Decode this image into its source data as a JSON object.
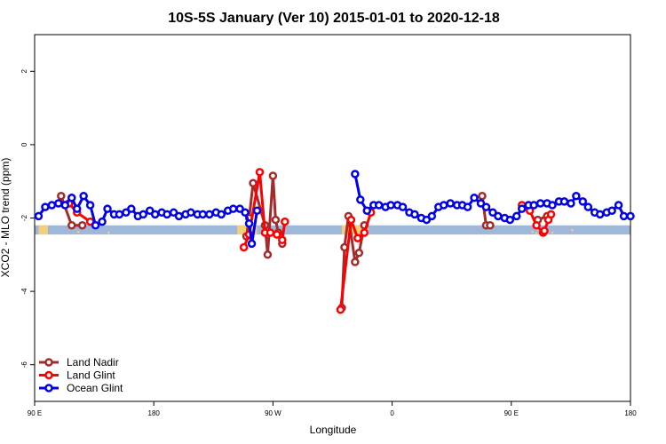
{
  "chart_data": {
    "type": "line",
    "title": "10S-5S January (Ver 10)   2015-01-01 to 2020-12-18",
    "xlabel": "Longitude",
    "ylabel": "XCO2 - MLO trend (ppm)",
    "xlim": [
      90,
      540
    ],
    "ylim": [
      -7,
      3
    ],
    "x_ticks": [
      {
        "value": 90,
        "label": "90 E"
      },
      {
        "value": 180,
        "label": "180"
      },
      {
        "value": 270,
        "label": "90 W"
      },
      {
        "value": 360,
        "label": "0"
      },
      {
        "value": 450,
        "label": "90 E"
      },
      {
        "value": 540,
        "label": "180"
      }
    ],
    "y_ticks": [
      {
        "value": 2,
        "label": "2"
      },
      {
        "value": 0,
        "label": "0"
      },
      {
        "value": -2,
        "label": "-2"
      },
      {
        "value": -4,
        "label": "-4"
      },
      {
        "value": -6,
        "label": "-6"
      }
    ],
    "grid": false,
    "legend_position": "bottom-left",
    "map_strip": {
      "y_range": [
        -2.45,
        -2.2
      ],
      "ocean_color": "#9fb8d9",
      "land_color": "#f2d07a"
    },
    "series": [
      {
        "name": "Land Nadir",
        "color": "#a52a2a",
        "x": [
          110,
          118,
          126,
          250,
          252,
          255,
          264,
          266,
          270,
          272,
          274,
          277,
          322,
          324,
          327,
          332,
          335,
          339,
          428,
          431,
          434,
          470,
          477
        ],
        "y": [
          -1.4,
          -2.2,
          -2.2,
          -2.5,
          -2.0,
          -1.05,
          -2.2,
          -3.0,
          -0.85,
          -2.05,
          -2.4,
          -2.7,
          -4.45,
          -2.8,
          -1.95,
          -3.2,
          -2.95,
          -2.2,
          -1.4,
          -2.2,
          -2.2,
          -2.05,
          -1.95
        ]
      },
      {
        "name": "Land Glint",
        "color": "#ff0000",
        "x": [
          116,
          122,
          132,
          248,
          252,
          260,
          264,
          268,
          273,
          277,
          279,
          321,
          329,
          334,
          339,
          344,
          458,
          464,
          469,
          474,
          475,
          478,
          480
        ],
        "y": [
          -1.6,
          -1.85,
          -2.1,
          -2.8,
          -2.45,
          -0.75,
          -2.4,
          -2.4,
          -2.45,
          -2.6,
          -2.1,
          -4.5,
          -2.05,
          -2.55,
          -2.4,
          -1.85,
          -1.65,
          -1.8,
          -2.2,
          -2.4,
          -2.35,
          -2.05,
          -1.9
        ]
      },
      {
        "name": "Ocean Glint",
        "color": "#0000ee",
        "x": [
          93,
          98,
          103,
          108,
          113,
          118,
          122,
          127,
          132,
          136,
          141,
          145,
          150,
          154,
          159,
          163,
          168,
          172,
          177,
          181,
          186,
          190,
          195,
          199,
          204,
          208,
          213,
          217,
          222,
          227,
          231,
          236,
          240,
          245,
          249,
          252,
          254,
          258,
          332,
          336,
          341,
          346,
          350,
          355,
          359,
          364,
          368,
          373,
          377,
          382,
          386,
          390,
          395,
          399,
          404,
          409,
          413,
          417,
          422,
          427,
          431,
          436,
          440,
          445,
          449,
          454,
          458,
          463,
          467,
          472,
          477,
          481,
          486,
          490,
          495,
          499,
          504,
          508,
          513,
          517,
          522,
          526,
          531,
          535,
          540
        ],
        "y": [
          -1.95,
          -1.7,
          -1.65,
          -1.6,
          -1.65,
          -1.45,
          -1.75,
          -1.4,
          -1.65,
          -2.2,
          -2.1,
          -1.75,
          -1.9,
          -1.9,
          -1.85,
          -1.75,
          -1.95,
          -1.9,
          -1.8,
          -1.9,
          -1.85,
          -1.9,
          -1.85,
          -1.95,
          -1.9,
          -1.85,
          -1.9,
          -1.9,
          -1.9,
          -1.85,
          -1.9,
          -1.8,
          -1.75,
          -1.75,
          -1.85,
          -2.15,
          -2.7,
          -1.8,
          -0.8,
          -1.5,
          -1.8,
          -1.65,
          -1.65,
          -1.7,
          -1.65,
          -1.65,
          -1.7,
          -1.85,
          -1.9,
          -2.0,
          -2.05,
          -1.95,
          -1.7,
          -1.65,
          -1.6,
          -1.65,
          -1.65,
          -1.7,
          -1.45,
          -1.6,
          -1.7,
          -1.85,
          -1.95,
          -2.0,
          -2.05,
          -1.95,
          -1.75,
          -1.65,
          -1.65,
          -1.6,
          -1.6,
          -1.65,
          -1.55,
          -1.55,
          -1.6,
          -1.4,
          -1.55,
          -1.7,
          -1.85,
          -1.9,
          -1.85,
          -1.8,
          -1.65,
          -1.95,
          -1.95
        ]
      }
    ]
  }
}
